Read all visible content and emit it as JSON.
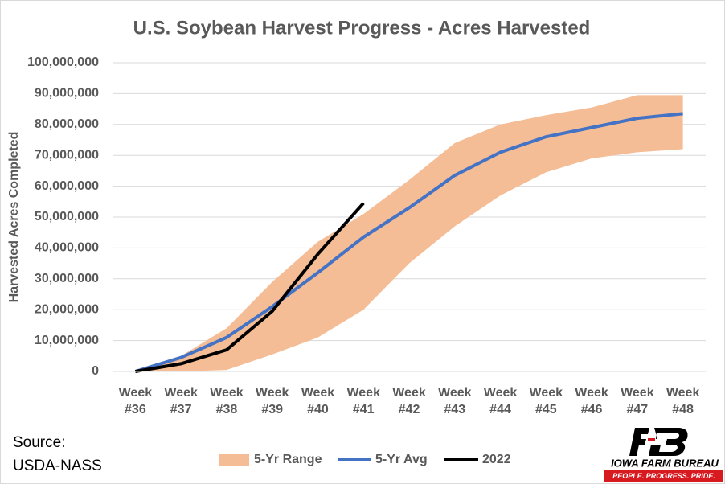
{
  "chart_data": {
    "type": "line",
    "title": "U.S.  Soybean Harvest Progress - Acres Harvested",
    "y_label": "Harvested Acres Completed",
    "source": [
      "Source:",
      "USDA-NASS"
    ],
    "categories": [
      "Week #36",
      "Week #37",
      "Week #38",
      "Week #39",
      "Week #40",
      "Week #41",
      "Week #42",
      "Week #43",
      "Week #44",
      "Week #45",
      "Week #46",
      "Week #47",
      "Week #48"
    ],
    "ylim": [
      0,
      100000000
    ],
    "yticks": [
      0,
      {
        "value": 10000000,
        "label": "10,000,000"
      },
      {
        "value": 20000000,
        "label": "20,000,000"
      },
      {
        "value": 30000000,
        "label": "30,000,000"
      },
      {
        "value": 40000000,
        "label": "40,000,000"
      },
      {
        "value": 50000000,
        "label": "50,000,000"
      },
      {
        "value": 60000000,
        "label": "60,000,000"
      },
      {
        "value": 70000000,
        "label": "70,000,000"
      },
      {
        "value": 80000000,
        "label": "80,000,000"
      },
      {
        "value": 90000000,
        "label": "90,000,000"
      },
      {
        "value": 100000000,
        "label": "100,000,000"
      }
    ],
    "grid": true,
    "legend": "bottom",
    "range": {
      "name": "5-Yr Range",
      "color": "#f5bd95",
      "low": [
        0,
        0,
        500000,
        5500000,
        11000000,
        20000000,
        35000000,
        47000000,
        57000000,
        64500000,
        69000000,
        71000000,
        72000000
      ],
      "high": [
        0,
        5000000,
        14000000,
        29000000,
        42000000,
        51000000,
        62000000,
        74000000,
        80000000,
        83000000,
        85500000,
        89500000,
        89500000
      ]
    },
    "series": [
      {
        "name": "5-Yr Avg",
        "color": "#4472c4",
        "values": [
          0,
          4500000,
          11000000,
          21000000,
          32000000,
          43500000,
          53000000,
          63500000,
          71000000,
          76000000,
          79000000,
          82000000,
          83500000
        ]
      },
      {
        "name": "2022",
        "color": "#000000",
        "values": [
          0,
          2500000,
          7000000,
          19500000,
          38000000,
          54500000,
          null,
          null,
          null,
          null,
          null,
          null,
          null
        ]
      }
    ]
  },
  "logo": {
    "name": "IOWA FARM BUREAU",
    "tagline": "PEOPLE. PROGRESS. PRIDE."
  }
}
